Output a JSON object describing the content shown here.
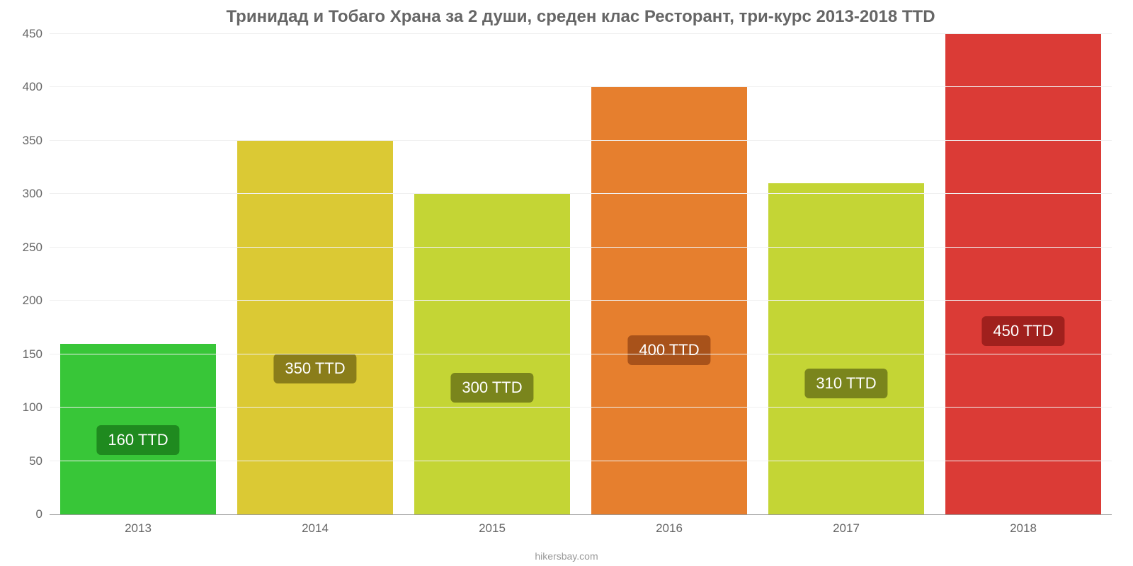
{
  "chart": {
    "type": "bar",
    "title": "Тринидад и Тобаго Храна за 2 души, среден клас Ресторант, три-курс 2013-2018 TTD",
    "title_fontsize": 24,
    "title_color": "#666666",
    "background_color": "#ffffff",
    "grid_color": "#f0f0f0",
    "axis_tick_color": "#666666",
    "axis_tick_fontsize": 17,
    "ylim_min": 0,
    "ylim_max": 450,
    "ytick_step": 50,
    "yticks": [
      0,
      50,
      100,
      150,
      200,
      250,
      300,
      350,
      400,
      450
    ],
    "categories": [
      "2013",
      "2014",
      "2015",
      "2016",
      "2017",
      "2018"
    ],
    "values": [
      160,
      350,
      300,
      400,
      310,
      450
    ],
    "bar_colors": [
      "#38c638",
      "#dbc934",
      "#c4d535",
      "#e67f2e",
      "#c4d535",
      "#db3b36"
    ],
    "bar_label_bg": [
      "#1f8a1f",
      "#8a7d1a",
      "#7a851c",
      "#a8521a",
      "#7a851c",
      "#a0201d"
    ],
    "bar_labels": [
      "160 TTD",
      "350 TTD",
      "300 TTD",
      "400 TTD",
      "310 TTD",
      "450 TTD"
    ],
    "bar_label_fontsize": 22,
    "bar_label_color": "#ffffff",
    "bar_width_pct": 88,
    "source_text": "hikersbay.com",
    "source_color": "#999999",
    "source_fontsize": 14
  }
}
